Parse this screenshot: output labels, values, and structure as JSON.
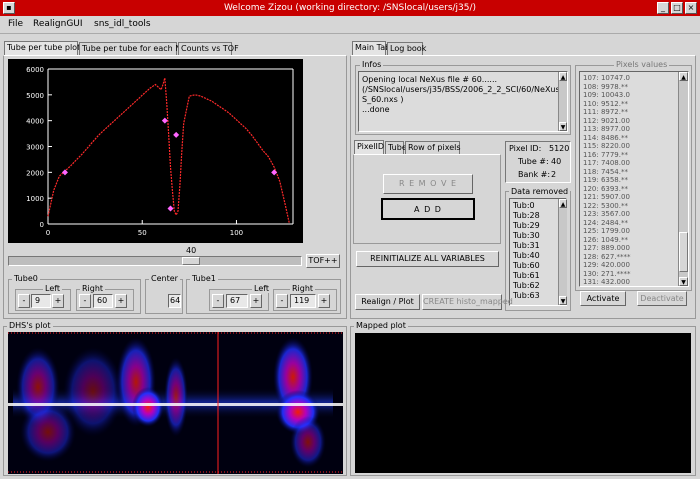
{
  "window": {
    "title": "Welcome Zizou  (working directory: /SNSlocal/users/j35/)"
  },
  "menu": [
    "File",
    "RealignGUI",
    "sns_idl_tools"
  ],
  "left_tabs": [
    "Tube per tube plot",
    "Tube per tube for each Nt",
    "Counts vs TOF"
  ],
  "chart_data": {
    "type": "line",
    "x": [
      0,
      3,
      6,
      9,
      12,
      15,
      18,
      21,
      24,
      27,
      30,
      33,
      36,
      39,
      42,
      45,
      48,
      51,
      54,
      57,
      60,
      61,
      62,
      63,
      64,
      65,
      66,
      67,
      68,
      69,
      70,
      71,
      72,
      75,
      78,
      81,
      84,
      87,
      90,
      93,
      96,
      99,
      102,
      105,
      108,
      111,
      114,
      117,
      120,
      123,
      126,
      128
    ],
    "y": [
      300,
      1300,
      1850,
      2050,
      2250,
      2480,
      2700,
      2950,
      3200,
      3450,
      3650,
      3850,
      4050,
      4250,
      4450,
      4650,
      4850,
      5050,
      5250,
      5400,
      5200,
      5400,
      5650,
      4700,
      3500,
      2200,
      1300,
      500,
      350,
      500,
      1500,
      2800,
      3900,
      4950,
      5000,
      4950,
      4850,
      4750,
      4600,
      4450,
      4300,
      4100,
      3900,
      3700,
      3450,
      3150,
      2850,
      2600,
      2200,
      1650,
      700,
      50
    ],
    "markers": [
      [
        9,
        2000
      ],
      [
        62,
        4000
      ],
      [
        65,
        600
      ],
      [
        68,
        3450
      ],
      [
        120,
        2000
      ]
    ],
    "xlim": [
      0,
      130
    ],
    "ylim": [
      0,
      6000
    ],
    "xticks": [
      0,
      50,
      100
    ],
    "yticks": [
      0,
      1000,
      2000,
      3000,
      4000,
      5000,
      6000
    ],
    "line_color": "#ff2a2a",
    "marker_color": "#ff66ff"
  },
  "slider": {
    "value": "40",
    "button": "TOF++"
  },
  "tube0": {
    "label": "Tube0",
    "left_label": "Left",
    "right_label": "Right",
    "left_value": "9",
    "right_value": "60"
  },
  "center": {
    "label": "Center",
    "value": "64"
  },
  "tube1": {
    "label": "Tube1",
    "left_label": "Left",
    "right_label": "Right",
    "left_value": "67",
    "right_value": "119"
  },
  "stepper": {
    "minus": "-",
    "plus": "+"
  },
  "dhs_plot": {
    "label": "DHS's plot"
  },
  "mapped_plot": {
    "label": "Mapped plot"
  },
  "right_tabs": [
    "Main Tab",
    "Log book"
  ],
  "infos": {
    "label": "Infos",
    "lines": [
      "Opening local NeXus file # 60......",
      "(/SNSlocal/users/j35/BSS/2006_2_2_SCI/60/NeXus/BS",
      "S_60.nxs )",
      "...done"
    ]
  },
  "sub_tabs": [
    "PixelID",
    "Tube",
    "Row of pixels"
  ],
  "buttons": {
    "remove": "R E M O V E",
    "add": "A D D",
    "reinit": "REINITIALIZE ALL VARIABLES",
    "realign": "Realign / Plot",
    "create": "CREATE histo_mapped",
    "activate": "Activate",
    "deactivate": "Deactivate"
  },
  "pixel_info": {
    "pixel_id_label": "Pixel ID:",
    "pixel_id": "5120",
    "tube_label": "Tube #:",
    "tube": "40",
    "bank_label": "Bank #:",
    "bank": "2"
  },
  "data_removed": {
    "label": "Data removed",
    "items": [
      "Tub:0",
      "Tub:28",
      "Tub:29",
      "Tub:30",
      "Tub:31",
      "Tub:40",
      "Tub:60",
      "Tub:61",
      "Tub:62",
      "Tub:63"
    ]
  },
  "pixels_values": {
    "label": "Pixels values",
    "items": [
      "107: 10747.0",
      "108: 9978.**",
      "109: 10043.0",
      "110: 9512.**",
      "111: 8972.**",
      "112: 9021.00",
      "113: 8977.00",
      "114: 8486.**",
      "115: 8220.00",
      "116: 7779.**",
      "117: 7408.00",
      "118: 7454.**",
      "119: 6358.**",
      "120: 6393.**",
      "121: 5907.00",
      "122: 5300.**",
      "123: 3567.00",
      "124: 2484.**",
      "125: 1799.00",
      "126: 1049.**",
      "127: 889.000",
      "128: 627.****",
      "129: 420.000",
      "130: 271.****",
      "131: 432.000"
    ]
  },
  "colors": {
    "window_bar": "#c80000",
    "plot_bg": "#000000",
    "line": "#ff2a2a"
  }
}
